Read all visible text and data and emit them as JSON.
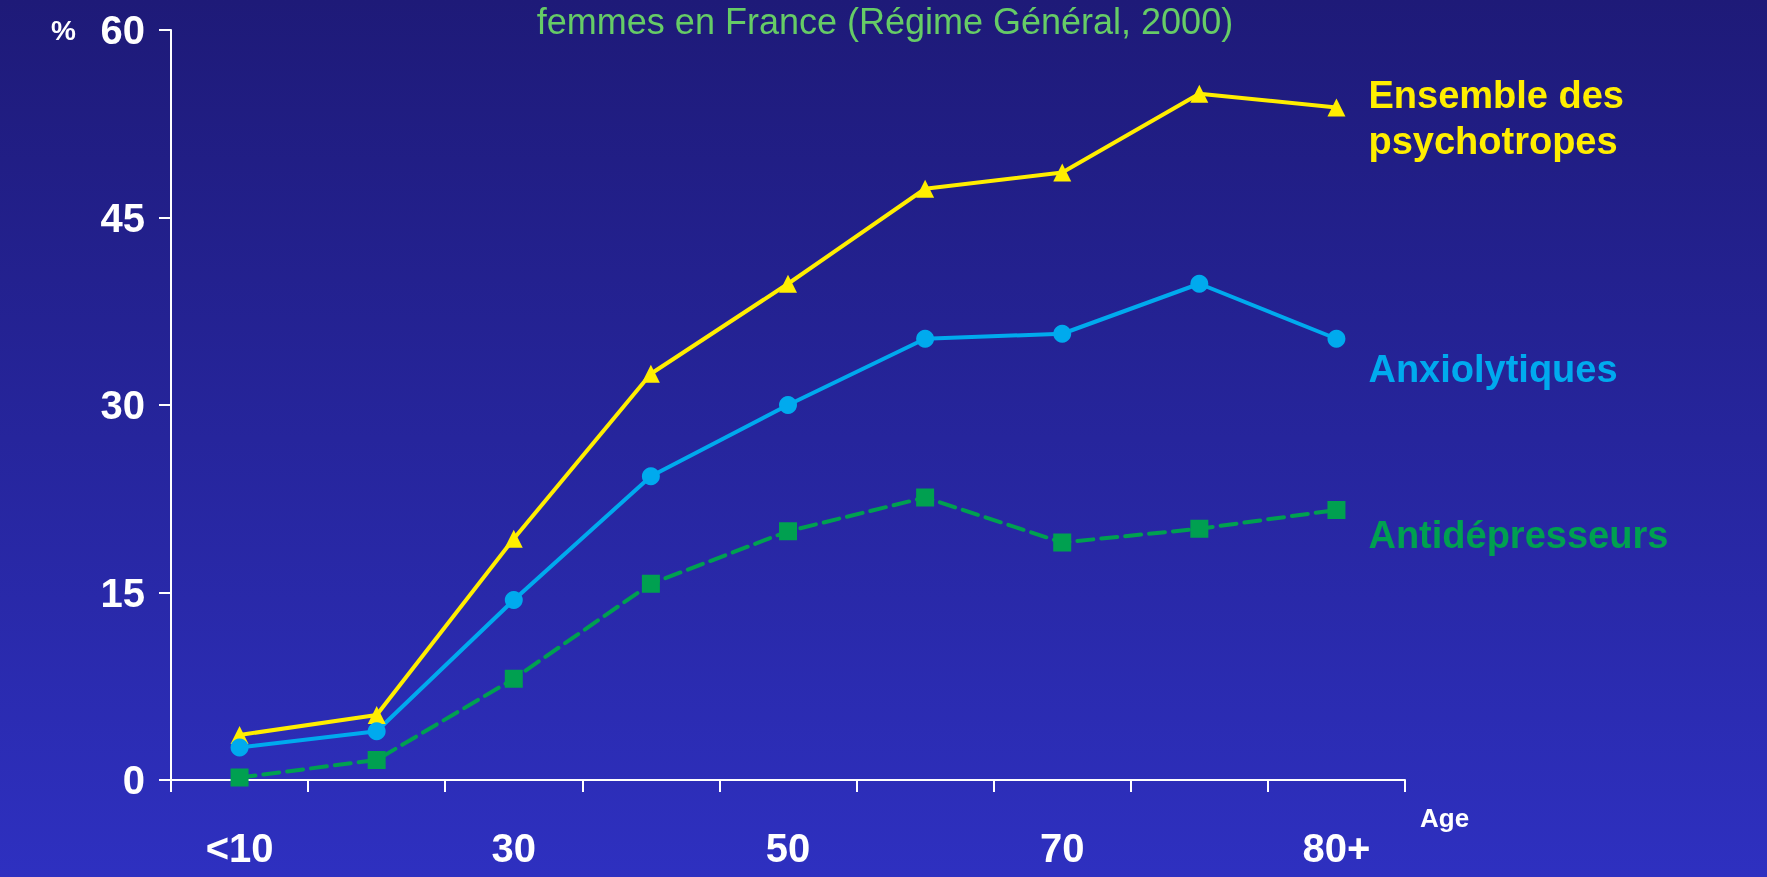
{
  "chart_data": {
    "type": "line",
    "title": "femmes en France (Régime Général, 2000)",
    "xlabel": "Age",
    "ylabel": "%",
    "categories": [
      "<10",
      null,
      "30",
      null,
      "50",
      null,
      "70",
      null,
      "80+"
    ],
    "ylim": [
      0,
      60
    ],
    "yticks": [
      0,
      15,
      30,
      45,
      60
    ],
    "grid": false,
    "legend": false,
    "series": [
      {
        "name": "Ensemble des psychotropes",
        "color": "#ffee00",
        "marker": "triangle",
        "line_style": "solid",
        "values": [
          3.6,
          5.2,
          19.3,
          32.5,
          39.7,
          47.3,
          48.6,
          54.9,
          53.8
        ]
      },
      {
        "name": "Anxiolytiques",
        "color": "#00aaee",
        "marker": "circle",
        "line_style": "solid",
        "values": [
          2.6,
          3.9,
          14.4,
          24.3,
          30.0,
          35.3,
          35.7,
          39.7,
          35.3
        ]
      },
      {
        "name": "Antidépresseurs",
        "color": "#00a050",
        "marker": "square",
        "line_style": "dashed",
        "values": [
          0.2,
          1.6,
          8.1,
          15.7,
          19.9,
          22.6,
          19.0,
          20.1,
          21.6
        ]
      }
    ]
  }
}
